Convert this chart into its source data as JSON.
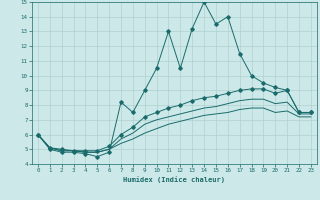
{
  "xlabel": "Humidex (Indice chaleur)",
  "xlim": [
    -0.5,
    23.5
  ],
  "ylim": [
    4,
    15
  ],
  "xticks": [
    0,
    1,
    2,
    3,
    4,
    5,
    6,
    7,
    8,
    9,
    10,
    11,
    12,
    13,
    14,
    15,
    16,
    17,
    18,
    19,
    20,
    21,
    22,
    23
  ],
  "yticks": [
    4,
    5,
    6,
    7,
    8,
    9,
    10,
    11,
    12,
    13,
    14,
    15
  ],
  "bg_color": "#cde8e8",
  "line_color": "#1a6b6b",
  "grid_color": "#b0d0d0",
  "s1_x": [
    0,
    1,
    2,
    3,
    4,
    5,
    6,
    7,
    8,
    9,
    10,
    11,
    12,
    13,
    14,
    15,
    16,
    17,
    18,
    19,
    20,
    21,
    22,
    23
  ],
  "s1_y": [
    6.0,
    5.0,
    4.8,
    4.8,
    4.7,
    4.5,
    4.8,
    8.2,
    7.5,
    9.0,
    10.5,
    13.0,
    10.5,
    13.2,
    15.0,
    13.5,
    14.0,
    11.5,
    10.0,
    9.5,
    9.2,
    9.0,
    7.5,
    7.5
  ],
  "s2_x": [
    0,
    1,
    2,
    3,
    4,
    5,
    6,
    7,
    8,
    9,
    10,
    11,
    12,
    13,
    14,
    15,
    16,
    17,
    18,
    19,
    20,
    21,
    22,
    23
  ],
  "s2_y": [
    6.0,
    5.1,
    5.0,
    4.9,
    4.9,
    4.9,
    5.2,
    6.0,
    6.5,
    7.2,
    7.5,
    7.8,
    8.0,
    8.3,
    8.5,
    8.6,
    8.8,
    9.0,
    9.1,
    9.1,
    8.8,
    9.0,
    7.5,
    7.5
  ],
  "s3_x": [
    0,
    1,
    2,
    3,
    4,
    5,
    6,
    7,
    8,
    9,
    10,
    11,
    12,
    13,
    14,
    15,
    16,
    17,
    18,
    19,
    20,
    21,
    22,
    23
  ],
  "s3_y": [
    6.0,
    5.1,
    4.9,
    4.9,
    4.8,
    4.8,
    5.0,
    5.7,
    6.1,
    6.7,
    7.0,
    7.2,
    7.4,
    7.6,
    7.8,
    7.9,
    8.1,
    8.3,
    8.4,
    8.4,
    8.1,
    8.2,
    7.4,
    7.4
  ],
  "s4_x": [
    0,
    1,
    2,
    3,
    4,
    5,
    6,
    7,
    8,
    9,
    10,
    11,
    12,
    13,
    14,
    15,
    16,
    17,
    18,
    19,
    20,
    21,
    22,
    23
  ],
  "s4_y": [
    6.0,
    5.1,
    4.9,
    4.9,
    4.8,
    4.8,
    5.0,
    5.4,
    5.7,
    6.1,
    6.4,
    6.7,
    6.9,
    7.1,
    7.3,
    7.4,
    7.5,
    7.7,
    7.8,
    7.8,
    7.5,
    7.6,
    7.2,
    7.2
  ]
}
